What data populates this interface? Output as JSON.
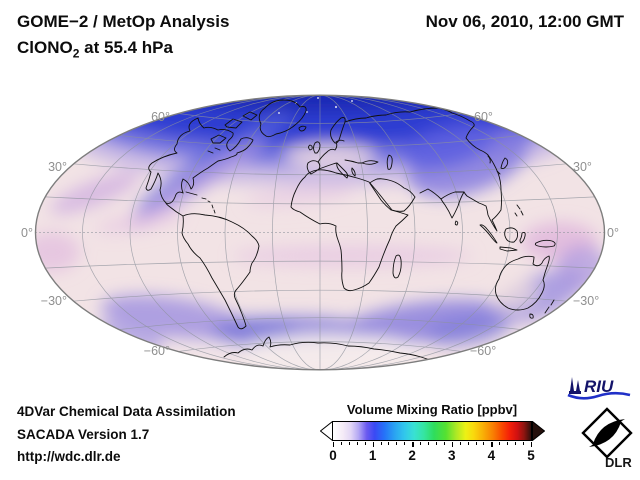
{
  "header": {
    "title": "GOME−2 / MetOp Analysis",
    "species_prefix": "ClONO",
    "species_sub": "2",
    "species_suffix": " at 55.4 hPa",
    "timestamp": "Nov 06, 2010, 12:00 GMT"
  },
  "map": {
    "lat_labels_left": [
      "60°",
      "30°",
      "0°",
      "−30°",
      "−60°"
    ],
    "lat_labels_right": [
      "60°",
      "30°",
      "0°",
      "−30°",
      "−60°"
    ]
  },
  "colorbar": {
    "label": "Volume Mixing Ratio [ppbv]",
    "min": 0,
    "max": 5,
    "minor_step": 0.2,
    "ticks": [
      "0",
      "1",
      "2",
      "3",
      "4",
      "5"
    ],
    "left_arrow": "#ffffff",
    "right_arrow": "#25100c",
    "stops": [
      {
        "at": 0.0,
        "color": "#ffffff"
      },
      {
        "at": 0.05,
        "color": "#f5ebf7"
      },
      {
        "at": 0.09,
        "color": "#e2d6f6"
      },
      {
        "at": 0.13,
        "color": "#b2a6f4"
      },
      {
        "at": 0.17,
        "color": "#6b5af0"
      },
      {
        "at": 0.21,
        "color": "#3a49f4"
      },
      {
        "at": 0.26,
        "color": "#2573f8"
      },
      {
        "at": 0.31,
        "color": "#2aa2f2"
      },
      {
        "at": 0.36,
        "color": "#31c6ec"
      },
      {
        "at": 0.41,
        "color": "#39e1d3"
      },
      {
        "at": 0.46,
        "color": "#35e5a0"
      },
      {
        "at": 0.51,
        "color": "#2fdd5d"
      },
      {
        "at": 0.57,
        "color": "#55e131"
      },
      {
        "at": 0.62,
        "color": "#a9e826"
      },
      {
        "at": 0.67,
        "color": "#edf115"
      },
      {
        "at": 0.71,
        "color": "#f9d90d"
      },
      {
        "at": 0.76,
        "color": "#f9ad06"
      },
      {
        "at": 0.81,
        "color": "#f97d02"
      },
      {
        "at": 0.85,
        "color": "#f94d00"
      },
      {
        "at": 0.89,
        "color": "#f52108"
      },
      {
        "at": 0.93,
        "color": "#d11111"
      },
      {
        "at": 0.965,
        "color": "#8e1510"
      },
      {
        "at": 1.0,
        "color": "#2f100c"
      }
    ]
  },
  "footer": {
    "line1": "4DVar Chemical Data Assimilation",
    "line2": "SACADA Version 1.7",
    "line3": "http://wdc.dlr.de"
  },
  "logos": {
    "riu": "RIU",
    "dlr": "DLR"
  },
  "chart_data": {
    "type": "heatmap",
    "title": "GOME−2 / MetOp Analysis",
    "variable": "ClONO2 volume mixing ratio",
    "pressure_level": "55.4 hPa",
    "time": "Nov 06, 2010, 12:00 GMT",
    "projection": "global elliptical (Hammer/Mollweide-style), graticule 30° lon × 15° lat",
    "colorbar_label": "Volume Mixing Ratio [ppbv]",
    "colorbar_range": [
      0,
      5
    ],
    "colorbar_ticks": [
      0,
      1,
      2,
      3,
      4,
      5
    ],
    "lat_labels_deg": [
      60,
      30,
      0,
      -30,
      -60
    ],
    "palette": {
      "background_field": "#f2e3e5",
      "polar_cap_blue": "#2e3ed2",
      "filament_purple": "#5a64dc",
      "tropics_orchid": "#dcaede",
      "southern_band_violet": "#8d85dd",
      "antarctic_pale": "#f6ecec"
    },
    "regions": [
      {
        "region": "Arctic / north polar cap (poleward of ~55°N)",
        "approx_value_ppbv": 0.8
      },
      {
        "region": "filaments across North America and NE Asia (~40–55°N)",
        "approx_value_ppbv": 0.4
      },
      {
        "region": "northern mid-latitude background",
        "approx_value_ppbv": 0.15
      },
      {
        "region": "tropics (pale)",
        "approx_value_ppbv": 0.08
      },
      {
        "region": "southern mid-latitude band (~45–65°S)",
        "approx_value_ppbv": 0.35
      },
      {
        "region": "Antarctic interior (poleward of ~70°S)",
        "approx_value_ppbv": 0.05
      }
    ]
  }
}
